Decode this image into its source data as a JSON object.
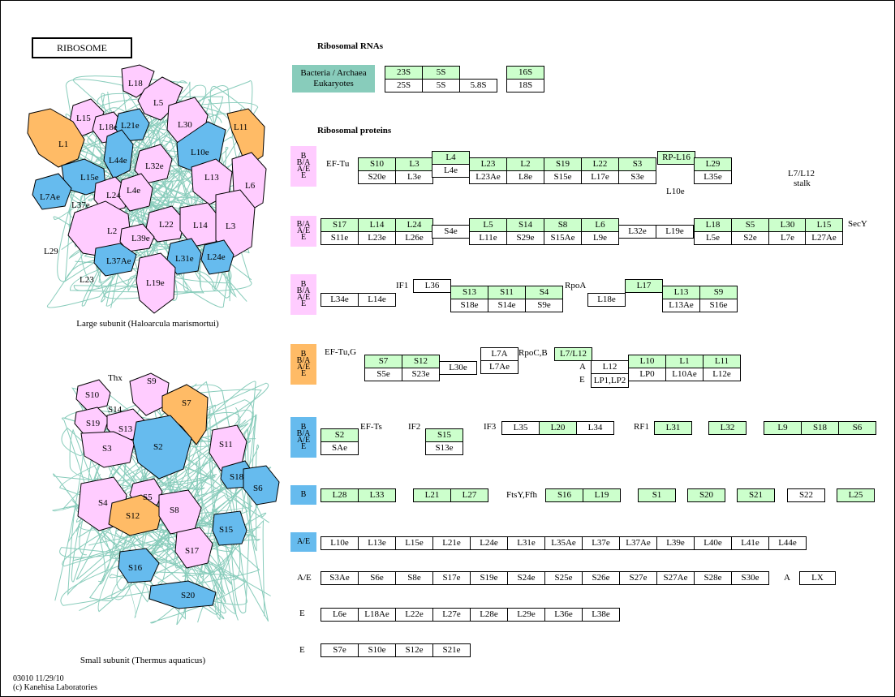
{
  "title": "RIBOSOME",
  "headers": {
    "rrna": "Ribosomal RNAs",
    "proteins": "Ribosomal proteins"
  },
  "rrna": {
    "legend_top": "Bacteria / Archaea",
    "legend_bottom": "Eukaryotes",
    "top": [
      "23S",
      "5S",
      "16S"
    ],
    "bottom": [
      "25S",
      "5S",
      "5.8S",
      "18S"
    ]
  },
  "colors": {
    "green": "#ccffcc",
    "pink": "#ffccff",
    "blue": "#66bbee",
    "orange": "#ffbb66",
    "teal": "#88ccbb"
  },
  "tags": {
    "t1": [
      "B",
      "B/A",
      "A/E",
      "E"
    ],
    "t2": [
      "B/A",
      "A/E",
      "E"
    ],
    "t3": [
      "B",
      "B/A",
      "A/E",
      "E"
    ],
    "t4": [
      "B",
      "B/A",
      "A/E",
      "E"
    ],
    "t5": [
      "B",
      "B/A",
      "A/E",
      "E"
    ],
    "t6": [
      "B"
    ],
    "t7": [
      "A/E"
    ]
  },
  "row1": {
    "label": "EF-Tu",
    "top": [
      "S10",
      "L3",
      "L4",
      "L23",
      "L2",
      "S19",
      "L22",
      "S3",
      "RP-L16",
      "L29"
    ],
    "bottom": [
      "S20e",
      "L3e",
      "L4e",
      "L23Ae",
      "L8e",
      "S15e",
      "L17e",
      "S3e",
      "L10e",
      "L35e"
    ],
    "stalk": [
      "L7/L12",
      "stalk"
    ]
  },
  "row2": {
    "top": [
      "S17",
      "L14",
      "L24",
      "L5",
      "S14",
      "S8",
      "L6",
      "L18",
      "S5",
      "L30",
      "L15"
    ],
    "bottom": [
      "S11e",
      "L23e",
      "L26e",
      "S4e",
      "L11e",
      "S29e",
      "S15Ae",
      "L9e",
      "L32e",
      "L19e",
      "L5e",
      "S2e",
      "L7e",
      "L27Ae"
    ],
    "label": "SecY"
  },
  "row3": {
    "labels": [
      "IF1",
      "RpoA"
    ],
    "top": [
      "L36",
      "S13",
      "S11",
      "S4",
      "L17",
      "L13",
      "S9"
    ],
    "bottom": [
      "L34e",
      "L14e",
      "S18e",
      "S14e",
      "S9e",
      "L18e",
      "L13Ae",
      "S16e"
    ]
  },
  "row4": {
    "labels": [
      "EF-Tu,G",
      "RpoC,B",
      "A",
      "E"
    ],
    "top": [
      "S7",
      "S12",
      "L7A",
      "L7/L12",
      "L10",
      "L1",
      "L11"
    ],
    "bottom": [
      "S5e",
      "S23e",
      "L30e",
      "L7Ae",
      "L12",
      "LP1,LP2",
      "LP0",
      "L10Ae",
      "L12e"
    ]
  },
  "row5": {
    "labels": [
      "EF-Ts",
      "IF2",
      "IF3",
      "RF1"
    ],
    "boxes": [
      "S2",
      "SAe",
      "S15",
      "S13e",
      "L35",
      "L20",
      "L34",
      "L31",
      "L32",
      "L9",
      "S18",
      "S6"
    ]
  },
  "row6": {
    "label": "FtsY,Ffh",
    "boxes": [
      "L28",
      "L33",
      "L21",
      "L27",
      "S16",
      "L19",
      "S1",
      "S20",
      "S21",
      "S22",
      "L25"
    ]
  },
  "row7": {
    "boxes": [
      "L10e",
      "L13e",
      "L15e",
      "L21e",
      "L24e",
      "L31e",
      "L35Ae",
      "L37e",
      "L37Ae",
      "L39e",
      "L40e",
      "L41e",
      "L44e"
    ]
  },
  "row8": {
    "label": "A/E",
    "boxes": [
      "S3Ae",
      "S6e",
      "S8e",
      "S17e",
      "S19e",
      "S24e",
      "S25e",
      "S26e",
      "S27e",
      "S27Ae",
      "S28e",
      "S30e"
    ],
    "a_label": "A",
    "a_box": "LX"
  },
  "row9": {
    "label": "E",
    "boxes": [
      "L6e",
      "L18Ae",
      "L22e",
      "L27e",
      "L28e",
      "L29e",
      "L36e",
      "L38e"
    ]
  },
  "row10": {
    "label": "E",
    "boxes": [
      "S7e",
      "S10e",
      "S12e",
      "S21e"
    ]
  },
  "large_subunit": {
    "caption": "Large subunit (Haloarcula marismortui)",
    "labels": [
      "L18",
      "L5",
      "L15",
      "L18e",
      "L21e",
      "L30",
      "L11",
      "L1",
      "L44e",
      "L10e",
      "L32e",
      "L15e",
      "L13",
      "L7Ae",
      "L37e",
      "L24",
      "L4e",
      "L6",
      "L22",
      "L14",
      "L3",
      "L2",
      "L39e",
      "L29",
      "L37Ae",
      "L31e",
      "L24e",
      "L23",
      "L19e"
    ]
  },
  "small_subunit": {
    "caption": "Small subunit (Thermus aquaticus)",
    "labels": [
      "Thx",
      "S9",
      "S10",
      "S14",
      "S19",
      "S13",
      "S7",
      "S3",
      "S2",
      "S11",
      "S18",
      "S6",
      "S5",
      "S4",
      "S12",
      "S8",
      "S15",
      "S17",
      "S16",
      "S20"
    ]
  },
  "footer": {
    "line1": "03010 11/29/10",
    "line2": "(c) Kanehisa Laboratories"
  }
}
